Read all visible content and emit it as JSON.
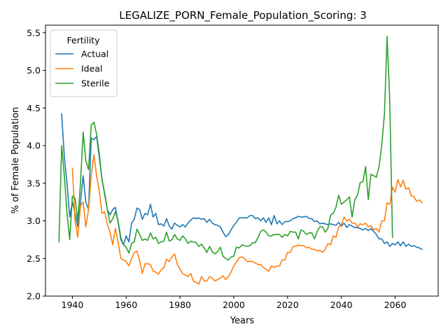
{
  "chart_data": {
    "type": "line",
    "title": "LEGALIZE_PORN_Female_Population_Scoring: 3",
    "xlabel": "Years",
    "ylabel": "% of Female Population",
    "xlim": [
      1930,
      2076
    ],
    "ylim": [
      2.0,
      5.6
    ],
    "xticks": [
      1940,
      1960,
      1980,
      2000,
      2020,
      2040,
      2060
    ],
    "yticks": [
      2.0,
      2.5,
      3.0,
      3.5,
      4.0,
      4.5,
      5.0,
      5.5
    ],
    "legend": {
      "title": "Fertility",
      "position": "top-left"
    },
    "grid": false,
    "series": [
      {
        "name": "Actual",
        "color": "#1f77b4",
        "x": [
          1936,
          1937,
          1938,
          1939,
          1940,
          1941,
          1942,
          1943,
          1944,
          1945,
          1946,
          1947,
          1948,
          1949,
          1950,
          1951,
          1952,
          1953,
          1954,
          1955,
          1956,
          1957,
          1958,
          1959,
          1960,
          1961,
          1962,
          1963,
          1964,
          1965,
          1966,
          1967,
          1968,
          1969,
          1970,
          1971,
          1972,
          1973,
          1974,
          1975,
          1976,
          1977,
          1978,
          1979,
          1980,
          1981,
          1982,
          1983,
          1984,
          1985,
          1986,
          1987,
          1988,
          1989,
          1990,
          1991,
          1992,
          1993,
          1994,
          1995,
          1996,
          1997,
          1998,
          1999,
          2000,
          2001,
          2002,
          2003,
          2004,
          2005,
          2006,
          2007,
          2008,
          2009,
          2010,
          2011,
          2012,
          2013,
          2014,
          2015,
          2016,
          2017,
          2018,
          2019,
          2020,
          2021,
          2022,
          2023,
          2024,
          2025,
          2026,
          2027,
          2028,
          2029,
          2030,
          2031,
          2032,
          2033,
          2034,
          2035,
          2036,
          2037,
          2038,
          2039,
          2040,
          2041,
          2042,
          2043,
          2044,
          2045,
          2046,
          2047,
          2048,
          2049,
          2050,
          2051,
          2052,
          2053,
          2054,
          2055,
          2056,
          2057,
          2058,
          2059,
          2060,
          2061,
          2062,
          2063,
          2064,
          2065,
          2066,
          2067,
          2068,
          2069,
          2070
        ],
        "y": [
          4.42,
          3.85,
          3.5,
          3.05,
          3.25,
          3.1,
          2.92,
          3.25,
          3.6,
          3.25,
          3.15,
          4.1,
          4.08,
          4.12,
          3.85,
          3.55,
          3.35,
          3.15,
          3.08,
          3.15,
          3.18,
          2.98,
          2.75,
          2.68,
          2.8,
          2.72,
          2.97,
          3.02,
          3.17,
          3.15,
          3.02,
          3.1,
          3.08,
          3.22,
          3.05,
          3.1,
          2.95,
          2.96,
          2.93,
          3.03,
          2.93,
          2.89,
          2.97,
          2.94,
          2.92,
          2.95,
          2.92,
          2.97,
          3.01,
          3.04,
          3.03,
          3.04,
          3.02,
          3.03,
          2.98,
          3.02,
          2.97,
          2.95,
          2.94,
          2.92,
          2.85,
          2.79,
          2.82,
          2.88,
          2.94,
          2.98,
          3.04,
          3.04,
          3.04,
          3.04,
          3.07,
          3.07,
          3.03,
          3.04,
          3.0,
          3.04,
          2.98,
          3.04,
          2.95,
          3.07,
          2.96,
          3.0,
          2.95,
          2.99,
          2.99,
          3.0,
          3.03,
          3.04,
          3.06,
          3.05,
          3.05,
          3.06,
          3.03,
          3.03,
          2.99,
          3.0,
          2.96,
          2.97,
          2.96,
          2.95,
          2.96,
          2.95,
          2.94,
          2.98,
          2.93,
          2.97,
          2.91,
          2.95,
          2.93,
          2.91,
          2.91,
          2.9,
          2.88,
          2.9,
          2.87,
          2.9,
          2.86,
          2.82,
          2.76,
          2.76,
          2.7,
          2.72,
          2.66,
          2.7,
          2.68,
          2.72,
          2.67,
          2.72,
          2.66,
          2.69,
          2.66,
          2.67,
          2.65,
          2.64,
          2.62
        ],
        "line_width": 1.6
      },
      {
        "name": "Ideal",
        "color": "#ff7f0e",
        "x": [
          1940,
          1941,
          1942,
          1943,
          1944,
          1945,
          1946,
          1947,
          1948,
          1949,
          1950,
          1951,
          1952,
          1953,
          1954,
          1955,
          1956,
          1957,
          1958,
          1959,
          1960,
          1961,
          1962,
          1963,
          1964,
          1965,
          1966,
          1967,
          1968,
          1969,
          1970,
          1971,
          1972,
          1973,
          1974,
          1975,
          1976,
          1977,
          1978,
          1979,
          1980,
          1981,
          1982,
          1983,
          1984,
          1985,
          1986,
          1987,
          1988,
          1989,
          1990,
          1991,
          1992,
          1993,
          1994,
          1995,
          1996,
          1997,
          1998,
          1999,
          2000,
          2001,
          2002,
          2003,
          2004,
          2005,
          2006,
          2007,
          2008,
          2009,
          2010,
          2011,
          2012,
          2013,
          2014,
          2015,
          2016,
          2017,
          2018,
          2019,
          2020,
          2021,
          2022,
          2023,
          2024,
          2025,
          2026,
          2027,
          2028,
          2029,
          2030,
          2031,
          2032,
          2033,
          2034,
          2035,
          2036,
          2037,
          2038,
          2039,
          2040,
          2041,
          2042,
          2043,
          2044,
          2045,
          2046,
          2047,
          2048,
          2049,
          2050,
          2051,
          2052,
          2053,
          2054,
          2055,
          2056,
          2057,
          2058,
          2059,
          2060,
          2061,
          2062,
          2063,
          2064,
          2065,
          2066,
          2067,
          2068,
          2069,
          2070
        ],
        "y": [
          3.7,
          3.0,
          2.78,
          3.2,
          3.25,
          2.92,
          3.15,
          3.6,
          3.88,
          3.6,
          3.4,
          3.1,
          3.12,
          2.95,
          2.85,
          2.68,
          2.9,
          2.72,
          2.5,
          2.48,
          2.46,
          2.4,
          2.5,
          2.58,
          2.6,
          2.47,
          2.3,
          2.43,
          2.43,
          2.42,
          2.33,
          2.32,
          2.29,
          2.35,
          2.38,
          2.49,
          2.46,
          2.52,
          2.56,
          2.42,
          2.36,
          2.3,
          2.28,
          2.26,
          2.3,
          2.2,
          2.18,
          2.16,
          2.26,
          2.2,
          2.2,
          2.26,
          2.24,
          2.2,
          2.22,
          2.24,
          2.27,
          2.22,
          2.26,
          2.32,
          2.4,
          2.45,
          2.51,
          2.52,
          2.5,
          2.46,
          2.46,
          2.46,
          2.44,
          2.42,
          2.42,
          2.38,
          2.36,
          2.33,
          2.4,
          2.38,
          2.4,
          2.4,
          2.48,
          2.48,
          2.58,
          2.58,
          2.66,
          2.66,
          2.68,
          2.67,
          2.67,
          2.64,
          2.65,
          2.62,
          2.62,
          2.6,
          2.61,
          2.58,
          2.62,
          2.7,
          2.68,
          2.8,
          2.78,
          2.92,
          2.95,
          3.05,
          3.0,
          3.02,
          2.97,
          2.97,
          2.92,
          2.96,
          2.95,
          2.97,
          2.92,
          2.94,
          2.88,
          2.9,
          2.85,
          3.0,
          3.0,
          3.24,
          3.22,
          3.45,
          3.38,
          3.55,
          3.45,
          3.54,
          3.42,
          3.44,
          3.33,
          3.32,
          3.26,
          3.28,
          3.24
        ],
        "line_width": 1.6
      },
      {
        "name": "Sterile",
        "color": "#2ca02c",
        "x": [
          1935,
          1936,
          1937,
          1938,
          1939,
          1940,
          1941,
          1942,
          1943,
          1944,
          1945,
          1946,
          1947,
          1948,
          1949,
          1950,
          1951,
          1952,
          1953,
          1954,
          1955,
          1956,
          1957,
          1958,
          1959,
          1960,
          1961,
          1962,
          1963,
          1964,
          1965,
          1966,
          1967,
          1968,
          1969,
          1970,
          1971,
          1972,
          1973,
          1974,
          1975,
          1976,
          1977,
          1978,
          1979,
          1980,
          1981,
          1982,
          1983,
          1984,
          1985,
          1986,
          1987,
          1988,
          1989,
          1990,
          1991,
          1992,
          1993,
          1994,
          1995,
          1996,
          1997,
          1998,
          1999,
          2000,
          2001,
          2002,
          2003,
          2004,
          2005,
          2006,
          2007,
          2008,
          2009,
          2010,
          2011,
          2012,
          2013,
          2014,
          2015,
          2016,
          2017,
          2018,
          2019,
          2020,
          2021,
          2022,
          2023,
          2024,
          2025,
          2026,
          2027,
          2028,
          2029,
          2030,
          2031,
          2032,
          2033,
          2034,
          2035,
          2036,
          2037,
          2038,
          2039,
          2040,
          2041,
          2042,
          2043,
          2044,
          2045,
          2046,
          2047,
          2048,
          2049,
          2050,
          2051,
          2052,
          2053,
          2054,
          2055,
          2056,
          2057,
          2058,
          2059
        ],
        "y": [
          2.72,
          4.0,
          3.6,
          3.1,
          2.75,
          3.33,
          3.3,
          3.0,
          3.5,
          4.18,
          3.8,
          3.68,
          4.27,
          4.31,
          4.15,
          3.9,
          3.55,
          3.37,
          3.15,
          2.97,
          3.03,
          3.12,
          3.0,
          2.78,
          2.68,
          2.65,
          2.57,
          2.7,
          2.72,
          2.89,
          2.82,
          2.74,
          2.76,
          2.74,
          2.84,
          2.76,
          2.78,
          2.7,
          2.72,
          2.73,
          2.85,
          2.73,
          2.75,
          2.82,
          2.76,
          2.74,
          2.8,
          2.76,
          2.7,
          2.73,
          2.72,
          2.71,
          2.66,
          2.69,
          2.64,
          2.58,
          2.66,
          2.59,
          2.56,
          2.59,
          2.65,
          2.53,
          2.5,
          2.48,
          2.52,
          2.53,
          2.65,
          2.64,
          2.68,
          2.67,
          2.66,
          2.67,
          2.71,
          2.71,
          2.78,
          2.86,
          2.88,
          2.85,
          2.8,
          2.8,
          2.82,
          2.82,
          2.82,
          2.78,
          2.82,
          2.8,
          2.86,
          2.85,
          2.85,
          2.76,
          2.88,
          2.86,
          2.82,
          2.84,
          2.84,
          2.76,
          2.86,
          2.92,
          2.92,
          2.85,
          2.9,
          3.08,
          3.1,
          3.18,
          3.34,
          3.22,
          3.25,
          3.28,
          3.32,
          3.05,
          3.28,
          3.34,
          3.51,
          3.52,
          3.72,
          3.28,
          3.62,
          3.6,
          3.58,
          3.72,
          4.0,
          4.42,
          5.45,
          4.6,
          2.78
        ],
        "line_width": 1.6
      }
    ]
  }
}
